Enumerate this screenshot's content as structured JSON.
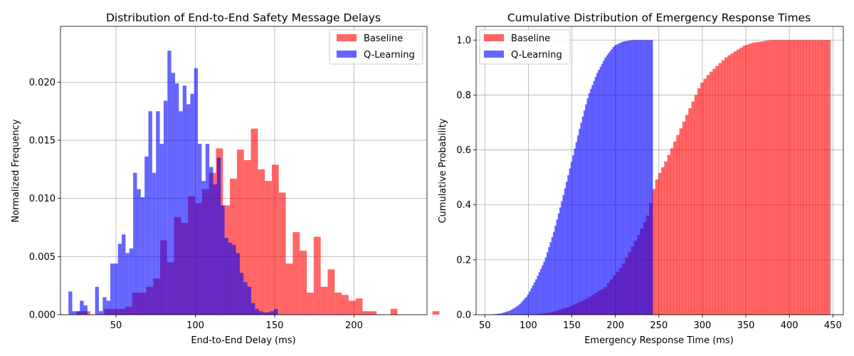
{
  "colors": {
    "baseline": "#ff0000",
    "qlearning": "#0000ff",
    "alpha": 0.6,
    "grid": "#b0b0b0"
  },
  "chart_data": [
    {
      "type": "bar",
      "subtype": "histogram",
      "title": "Distribution of End-to-End Safety Message Delays",
      "xlabel": "End-to-End Delay (ms)",
      "ylabel": "Normalized Frequency",
      "xlim": [
        15,
        246
      ],
      "ylim": [
        0,
        0.0248
      ],
      "xticks": [
        50,
        100,
        150,
        200
      ],
      "yticks": [
        0.0,
        0.005,
        0.01,
        0.015,
        0.02
      ],
      "ytick_labels": [
        "0.000",
        "0.005",
        "0.010",
        "0.015",
        "0.020"
      ],
      "grid": true,
      "legend": "top-right",
      "series": [
        {
          "name": "Baseline",
          "bin_start": 25,
          "bin_width": 4.4,
          "values": [
            0.0003,
            0.0003,
            0,
            0,
            0.0005,
            0.0005,
            0.0005,
            0.0007,
            0.0019,
            0.0019,
            0.0024,
            0.0031,
            0.0064,
            0.0045,
            0.0084,
            0.0079,
            0.0102,
            0.0096,
            0.0108,
            0.0122,
            0.0143,
            0.0094,
            0.0117,
            0.0142,
            0.0133,
            0.016,
            0.0125,
            0.0115,
            0.0129,
            0.0105,
            0.0044,
            0.0071,
            0.0055,
            0.0019,
            0.0067,
            0.0024,
            0.0039,
            0.0019,
            0.0017,
            0.0012,
            0.0014,
            0.0003,
            0.0003,
            0,
            0,
            0.0005,
            0,
            0,
            0,
            0,
            0,
            0.0003
          ]
        },
        {
          "name": "Q-Learning",
          "bin_start": 20,
          "bin_width": 2.4,
          "values": [
            0.002,
            0.0003,
            0.0003,
            0.0012,
            0.0008,
            0,
            0,
            0.0024,
            0.0003,
            0.0015,
            0.0012,
            0.0044,
            0.0044,
            0.0061,
            0.0069,
            0.0053,
            0.0057,
            0.0122,
            0.0108,
            0.0101,
            0.0136,
            0.0175,
            0.0122,
            0.0175,
            0.0147,
            0.0184,
            0.0227,
            0.0208,
            0.0199,
            0.0175,
            0.0197,
            0.0181,
            0.019,
            0.0212,
            0.0147,
            0.0115,
            0.0147,
            0.0127,
            0.0112,
            0.0135,
            0.0094,
            0.0066,
            0.0062,
            0.006,
            0.0053,
            0.0036,
            0.0028,
            0.0024,
            0.001,
            0.0005,
            0.0003,
            0.0002,
            0.0002,
            0.0003,
            0.0005
          ]
        }
      ]
    },
    {
      "type": "bar",
      "subtype": "cumulative-histogram",
      "title": "Cumulative Distribution of Emergency Response Times",
      "xlabel": "Emergency Response Time (ms)",
      "ylabel": "Cumulative Probability",
      "xlim": [
        40,
        462
      ],
      "ylim": [
        0,
        1.05
      ],
      "xticks": [
        50,
        100,
        150,
        200,
        250,
        300,
        350,
        400,
        450
      ],
      "yticks": [
        0.0,
        0.2,
        0.4,
        0.6,
        0.8,
        1.0
      ],
      "ytick_labels": [
        "0.0",
        "0.2",
        "0.4",
        "0.6",
        "0.8",
        "1.0"
      ],
      "grid": true,
      "legend": "top-left",
      "series": [
        {
          "name": "Baseline",
          "bin_edges_range": [
            100,
            447
          ],
          "cdf_points": [
            [
              100,
              0
            ],
            [
              110,
              0.002
            ],
            [
              120,
              0.005
            ],
            [
              130,
              0.01
            ],
            [
              140,
              0.02
            ],
            [
              150,
              0.03
            ],
            [
              160,
              0.045
            ],
            [
              170,
              0.06
            ],
            [
              180,
              0.08
            ],
            [
              190,
              0.1
            ],
            [
              200,
              0.14
            ],
            [
              210,
              0.18
            ],
            [
              220,
              0.24
            ],
            [
              230,
              0.3
            ],
            [
              240,
              0.37
            ],
            [
              245,
              0.45
            ],
            [
              250,
              0.5
            ],
            [
              260,
              0.56
            ],
            [
              270,
              0.63
            ],
            [
              280,
              0.7
            ],
            [
              290,
              0.77
            ],
            [
              300,
              0.84
            ],
            [
              310,
              0.88
            ],
            [
              320,
              0.91
            ],
            [
              330,
              0.94
            ],
            [
              340,
              0.96
            ],
            [
              350,
              0.98
            ],
            [
              360,
              0.99
            ],
            [
              370,
              0.995
            ],
            [
              380,
              1.0
            ],
            [
              447,
              1.0
            ]
          ]
        },
        {
          "name": "Q-Learning",
          "bin_edges_range": [
            58,
            243
          ],
          "cdf_points": [
            [
              58,
              0
            ],
            [
              70,
              0.005
            ],
            [
              80,
              0.015
            ],
            [
              90,
              0.035
            ],
            [
              100,
              0.07
            ],
            [
              110,
              0.13
            ],
            [
              120,
              0.2
            ],
            [
              130,
              0.3
            ],
            [
              140,
              0.42
            ],
            [
              150,
              0.55
            ],
            [
              160,
              0.68
            ],
            [
              170,
              0.8
            ],
            [
              180,
              0.88
            ],
            [
              190,
              0.94
            ],
            [
              200,
              0.98
            ],
            [
              210,
              0.995
            ],
            [
              220,
              1.0
            ],
            [
              243,
              1.0
            ]
          ]
        }
      ]
    }
  ]
}
